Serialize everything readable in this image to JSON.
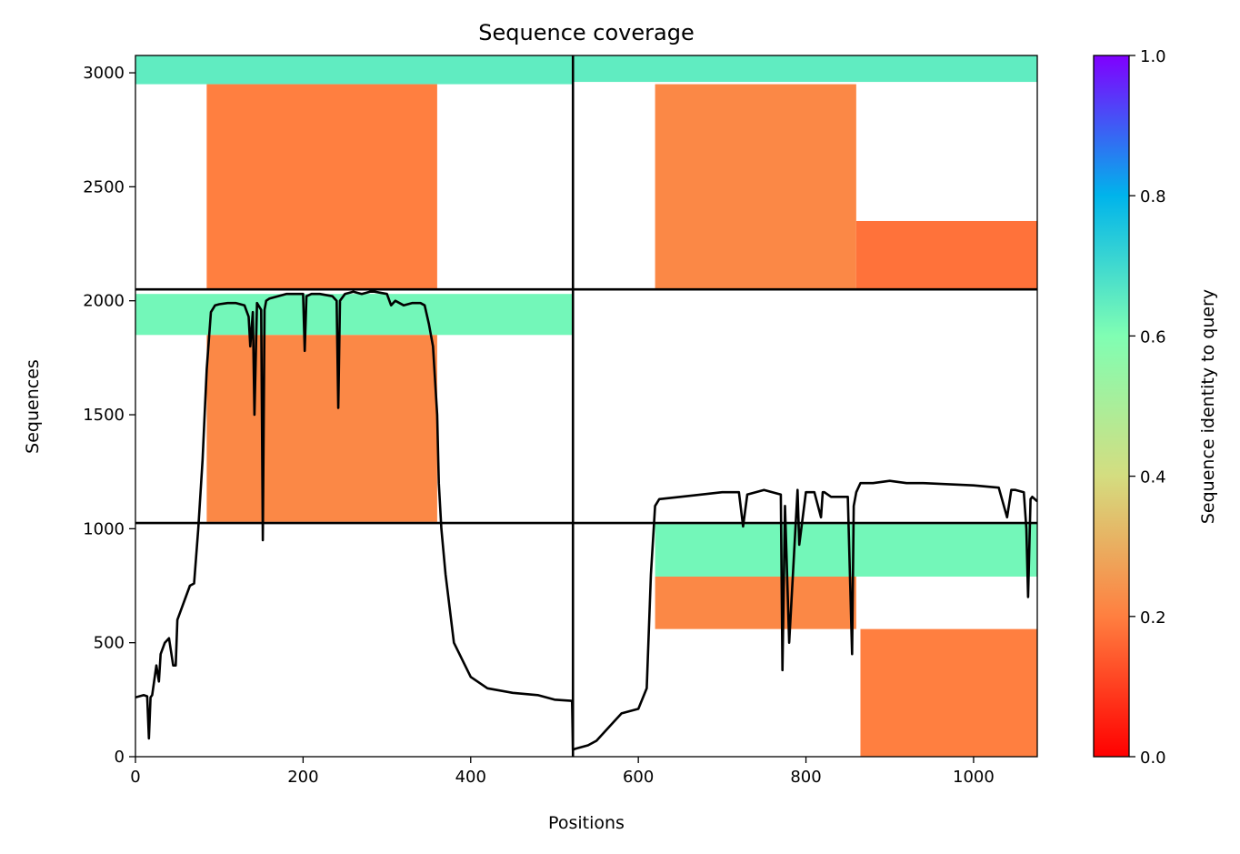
{
  "chart_data": {
    "type": "heatmap",
    "title": "Sequence coverage",
    "xlabel": "Positions",
    "ylabel": "Sequences",
    "xlim": [
      0,
      1076
    ],
    "ylim": [
      0,
      3076
    ],
    "xticks": [
      0,
      200,
      400,
      600,
      800,
      1000
    ],
    "yticks": [
      0,
      500,
      1000,
      1500,
      2000,
      2500,
      3000
    ],
    "colorbar": {
      "label": "Sequence identity to query",
      "range": [
        0.0,
        1.0
      ],
      "ticks": [
        "0.0",
        "0.2",
        "0.4",
        "0.6",
        "0.8",
        "1.0"
      ],
      "colormap": "rainbow_r",
      "stops": [
        "#ff0000",
        "#ff7f40",
        "#d4dd80",
        "#80feb3",
        "#00b4eb",
        "#8000ff"
      ]
    },
    "grid": false,
    "chain_boundaries": {
      "x": [
        522
      ],
      "y": [
        1025,
        2050
      ]
    },
    "coverage_blocks": [
      {
        "name": "block-1-top",
        "x": [
          0,
          522
        ],
        "y": [
          2950,
          3076
        ],
        "identity": 0.65
      },
      {
        "name": "block-1-core",
        "x": [
          85,
          360
        ],
        "y": [
          2050,
          2950
        ],
        "identity": 0.2
      },
      {
        "name": "block-2-top",
        "x": [
          522,
          1076
        ],
        "y": [
          2960,
          3076
        ],
        "identity": 0.65
      },
      {
        "name": "block-2-core",
        "x": [
          620,
          860
        ],
        "y": [
          2050,
          2950
        ],
        "identity": 0.22
      },
      {
        "name": "block-2-tail",
        "x": [
          860,
          1076
        ],
        "y": [
          2050,
          2350
        ],
        "identity": 0.18
      },
      {
        "name": "block-3-top",
        "x": [
          0,
          522
        ],
        "y": [
          1850,
          2030
        ],
        "identity": 0.62
      },
      {
        "name": "block-3-core",
        "x": [
          85,
          360
        ],
        "y": [
          1030,
          1850
        ],
        "identity": 0.22
      },
      {
        "name": "block-4-top",
        "x": [
          620,
          1076
        ],
        "y": [
          790,
          1020
        ],
        "identity": 0.62
      },
      {
        "name": "block-4-mid",
        "x": [
          620,
          860
        ],
        "y": [
          560,
          790
        ],
        "identity": 0.22
      },
      {
        "name": "block-4-tail",
        "x": [
          865,
          1076
        ],
        "y": [
          0,
          560
        ],
        "identity": 0.2
      }
    ],
    "coverage_line": {
      "x": [
        0,
        10,
        14,
        16,
        18,
        20,
        25,
        28,
        30,
        35,
        40,
        45,
        48,
        50,
        55,
        60,
        65,
        70,
        75,
        80,
        85,
        90,
        95,
        100,
        110,
        120,
        130,
        135,
        137,
        140,
        142,
        145,
        150,
        152,
        154,
        156,
        160,
        170,
        180,
        200,
        202,
        204,
        210,
        220,
        235,
        240,
        242,
        244,
        250,
        260,
        270,
        280,
        285,
        300,
        305,
        310,
        320,
        330,
        340,
        345,
        350,
        355,
        360,
        362,
        365,
        370,
        380,
        400,
        420,
        450,
        480,
        500,
        520,
        521,
        522,
        525,
        530,
        540,
        550,
        570,
        580,
        590,
        600,
        610,
        615,
        620,
        625,
        650,
        700,
        720,
        725,
        730,
        750,
        770,
        772,
        775,
        780,
        790,
        792,
        800,
        810,
        818,
        820,
        822,
        830,
        850,
        855,
        857,
        860,
        865,
        880,
        900,
        920,
        940,
        1000,
        1030,
        1040,
        1045,
        1050,
        1060,
        1063,
        1065,
        1068,
        1070,
        1076
      ],
      "y": [
        260,
        270,
        265,
        80,
        260,
        270,
        400,
        330,
        450,
        500,
        520,
        400,
        400,
        600,
        650,
        700,
        750,
        760,
        1000,
        1300,
        1700,
        1950,
        1980,
        1985,
        1990,
        1990,
        1980,
        1930,
        1800,
        1950,
        1500,
        1990,
        1960,
        950,
        1960,
        2000,
        2010,
        2020,
        2030,
        2030,
        1780,
        2020,
        2030,
        2030,
        2020,
        2000,
        1530,
        2000,
        2030,
        2040,
        2030,
        2040,
        2040,
        2030,
        1980,
        2000,
        1980,
        1990,
        1990,
        1980,
        1900,
        1800,
        1500,
        1200,
        1000,
        800,
        500,
        350,
        300,
        280,
        270,
        250,
        245,
        240,
        30,
        35,
        40,
        50,
        70,
        150,
        190,
        200,
        210,
        300,
        800,
        1100,
        1130,
        1140,
        1160,
        1160,
        1010,
        1150,
        1170,
        1150,
        380,
        1100,
        500,
        1170,
        930,
        1160,
        1160,
        1050,
        1160,
        1160,
        1140,
        1140,
        450,
        1100,
        1160,
        1200,
        1200,
        1210,
        1200,
        1200,
        1190,
        1180,
        1050,
        1170,
        1170,
        1160,
        1000,
        700,
        1130,
        1140,
        1120
      ]
    }
  }
}
